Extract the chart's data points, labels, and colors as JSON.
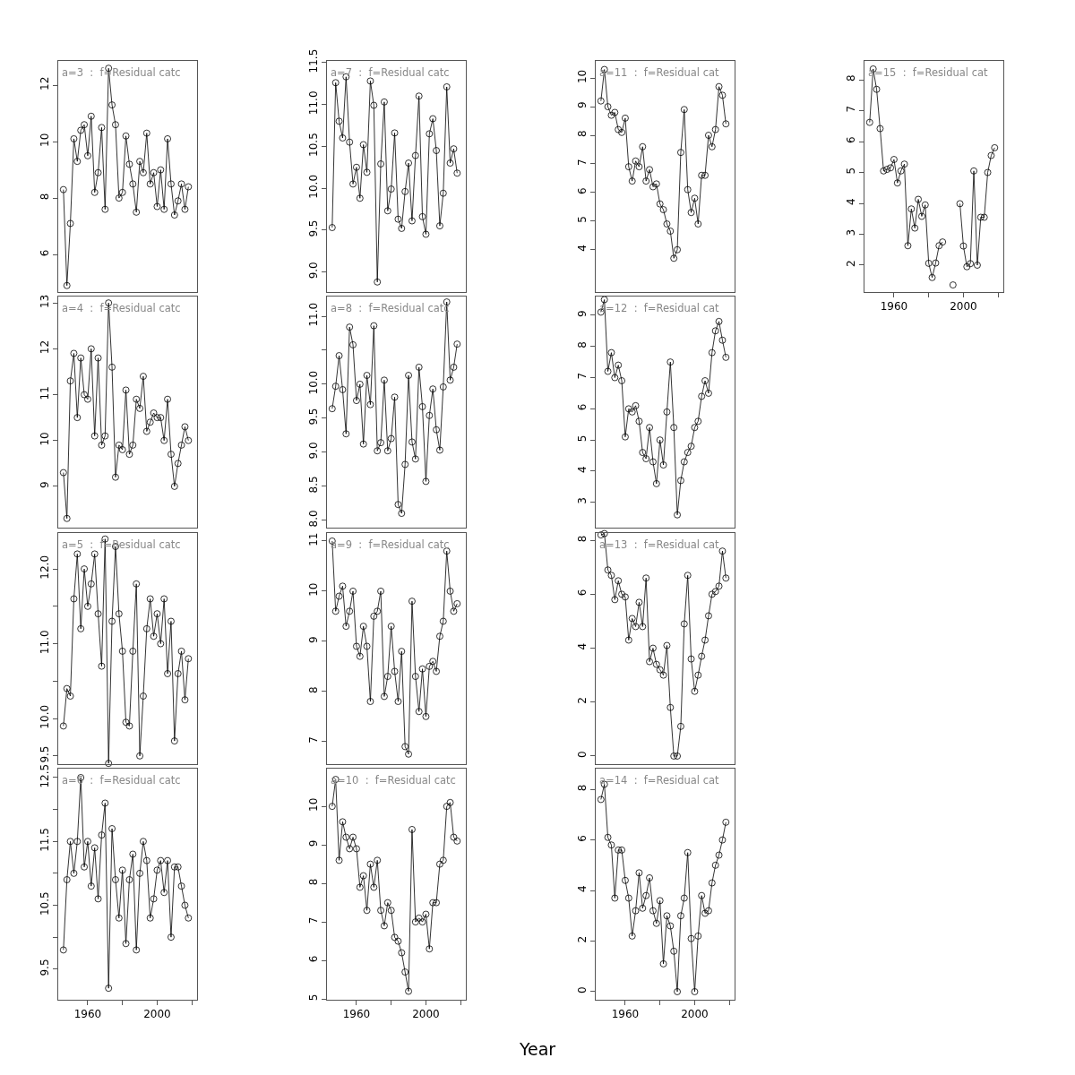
{
  "chart_data": [
    {
      "type": "line",
      "title": "a=3  :  f=Residual catc",
      "x": [
        1946,
        1948,
        1950,
        1952,
        1954,
        1956,
        1958,
        1960,
        1962,
        1964,
        1966,
        1968,
        1970,
        1972,
        1974,
        1976,
        1978,
        1980,
        1982,
        1984,
        1986,
        1988,
        1990,
        1992,
        1994,
        1996,
        1998,
        2000,
        2002,
        2004,
        2006,
        2008,
        2010,
        2012,
        2014,
        2016,
        2018
      ],
      "series": [
        {
          "color": "#000000",
          "values": [
            8.3,
            4.9,
            7.1,
            10.1,
            9.3,
            10.4,
            10.6,
            9.5,
            10.9,
            8.2,
            8.9,
            10.5,
            7.6,
            12.6,
            11.3,
            10.6,
            8.0,
            8.2,
            10.2,
            9.2,
            8.5,
            7.5,
            9.3,
            8.9,
            10.3,
            8.5,
            8.9,
            7.7,
            9.0,
            7.6,
            10.1,
            8.5,
            7.4,
            7.9,
            8.5,
            7.6,
            8.4
          ]
        }
      ],
      "marker": "circle",
      "xlim": [
        1943,
        2023
      ],
      "ylim": [
        4.67,
        12.86
      ],
      "yticks": [
        6,
        8,
        10,
        12
      ],
      "tick_labels": "y"
    },
    {
      "type": "line",
      "title": "a=7  :  f=Residual catc",
      "x": [
        1946,
        1948,
        1950,
        1952,
        1954,
        1956,
        1958,
        1960,
        1962,
        1964,
        1966,
        1968,
        1970,
        1972,
        1974,
        1976,
        1978,
        1980,
        1982,
        1984,
        1986,
        1988,
        1990,
        1992,
        1994,
        1996,
        1998,
        2000,
        2002,
        2004,
        2006,
        2008,
        2010,
        2012,
        2014,
        2016,
        2018
      ],
      "series": [
        {
          "color": "#000000",
          "values": [
            9.53,
            11.26,
            10.8,
            10.6,
            11.33,
            10.55,
            10.05,
            10.25,
            9.88,
            10.52,
            10.19,
            11.28,
            10.99,
            8.88,
            10.29,
            11.03,
            9.73,
            9.99,
            10.66,
            9.63,
            9.52,
            9.96,
            10.3,
            9.61,
            10.39,
            11.1,
            9.66,
            9.45,
            10.65,
            10.83,
            10.45,
            9.55,
            9.94,
            11.21,
            10.3,
            10.47,
            10.18
          ]
        }
      ],
      "marker": "circle",
      "xlim": [
        1943,
        2023
      ],
      "ylim": [
        8.76,
        11.52
      ],
      "yticks": [
        {
          "value": 9,
          "label": "9.0"
        },
        {
          "value": 9.5,
          "label": "9.5"
        },
        {
          "value": 10,
          "label": "10.0"
        },
        {
          "value": 10.5,
          "label": "10.5"
        },
        {
          "value": 11,
          "label": "11.0"
        },
        {
          "value": 11.5,
          "label": "11.5"
        }
      ],
      "tick_labels": "y"
    },
    {
      "type": "line",
      "title": "a=11  :  f=Residual cat",
      "x": [
        1946,
        1948,
        1950,
        1952,
        1954,
        1956,
        1958,
        1960,
        1962,
        1964,
        1966,
        1968,
        1970,
        1972,
        1974,
        1976,
        1978,
        1980,
        1982,
        1984,
        1986,
        1988,
        1990,
        1992,
        1994,
        1996,
        1998,
        2000,
        2002,
        2004,
        2006,
        2008,
        2010,
        2012,
        2014,
        2016,
        2018
      ],
      "series": [
        {
          "color": "#000000",
          "values": [
            9.2,
            10.3,
            9.0,
            8.7,
            8.8,
            8.2,
            8.1,
            8.6,
            6.9,
            6.4,
            7.1,
            6.9,
            7.6,
            6.4,
            6.8,
            6.2,
            6.3,
            5.6,
            5.4,
            4.9,
            4.65,
            3.7,
            4.0,
            7.4,
            8.9,
            6.1,
            5.3,
            5.8,
            4.9,
            6.6,
            6.6,
            8.0,
            7.6,
            8.2,
            9.7,
            9.4,
            8.4
          ]
        }
      ],
      "marker": "circle",
      "xlim": [
        1943,
        2023
      ],
      "ylim": [
        2.52,
        10.6
      ],
      "yticks": [
        4,
        5,
        6,
        7,
        8,
        9,
        10
      ],
      "tick_labels": "y"
    },
    {
      "type": "line",
      "title": "a=15  :  f=Residual cat",
      "x": [
        1946,
        1948,
        1950,
        1952,
        1954,
        1956,
        1958,
        1960,
        1962,
        1964,
        1966,
        1968,
        1970,
        1972,
        1974,
        1976,
        1978,
        1980,
        1982,
        1984,
        1986,
        1988,
        1990,
        1992,
        1994,
        1996,
        1998,
        2000,
        2002,
        2004,
        2006,
        2008,
        2010,
        2012,
        2014,
        2016,
        2018
      ],
      "series": [
        {
          "color": "#000000",
          "values": [
            6.62,
            8.35,
            7.69,
            6.42,
            5.05,
            5.1,
            5.15,
            5.42,
            4.66,
            5.05,
            5.27,
            2.63,
            3.82,
            3.2,
            4.13,
            3.58,
            3.95,
            2.06,
            1.6,
            2.07,
            2.63,
            2.75,
            null,
            null,
            1.36,
            null,
            3.99,
            2.62,
            1.95,
            2.05,
            5.05,
            2.0,
            3.55,
            3.55,
            5.0,
            5.55,
            5.8
          ]
        }
      ],
      "marker": "circle",
      "xlim": [
        1943,
        2023
      ],
      "xticks": [
        {
          "value": 1960,
          "label": "1960"
        },
        {
          "value": 1980,
          "label": null
        },
        {
          "value": 2000,
          "label": "2000"
        },
        {
          "value": 2020,
          "label": null
        }
      ],
      "ylim": [
        1.13,
        8.61
      ],
      "yticks": [
        2,
        3,
        4,
        5,
        6,
        7,
        8
      ]
    },
    {
      "type": "line",
      "title": "a=4  :  f=Residual catc",
      "x": [
        1946,
        1948,
        1950,
        1952,
        1954,
        1956,
        1958,
        1960,
        1962,
        1964,
        1966,
        1968,
        1970,
        1972,
        1974,
        1976,
        1978,
        1980,
        1982,
        1984,
        1986,
        1988,
        1990,
        1992,
        1994,
        1996,
        1998,
        2000,
        2002,
        2004,
        2006,
        2008,
        2010,
        2012,
        2014,
        2016,
        2018
      ],
      "series": [
        {
          "color": "#000000",
          "values": [
            9.3,
            8.3,
            11.3,
            11.9,
            10.5,
            11.8,
            11.0,
            10.9,
            12.0,
            10.1,
            11.8,
            9.9,
            10.1,
            13.0,
            11.6,
            9.2,
            9.9,
            9.8,
            11.1,
            9.7,
            9.9,
            10.9,
            10.7,
            11.4,
            10.2,
            10.4,
            10.6,
            10.5,
            10.5,
            10.0,
            10.9,
            9.7,
            9.0,
            9.5,
            9.9,
            10.3,
            10.0
          ]
        }
      ],
      "marker": "circle",
      "xlim": [
        1943,
        2023
      ],
      "ylim": [
        8.1,
        13.14
      ],
      "yticks": [
        9,
        10,
        11,
        12,
        13
      ],
      "tick_labels": "y"
    },
    {
      "type": "line",
      "title": "a=8  :  f=Residual catc",
      "x": [
        1946,
        1948,
        1950,
        1952,
        1954,
        1956,
        1958,
        1960,
        1962,
        1964,
        1966,
        1968,
        1970,
        1972,
        1974,
        1976,
        1978,
        1980,
        1982,
        1984,
        1986,
        1988,
        1990,
        1992,
        1994,
        1996,
        1998,
        2000,
        2002,
        2004,
        2006,
        2008,
        2010,
        2012,
        2014,
        2016,
        2018
      ],
      "series": [
        {
          "color": "#000000",
          "values": [
            9.64,
            9.97,
            10.42,
            9.92,
            9.27,
            10.84,
            10.58,
            9.76,
            10.0,
            9.12,
            10.13,
            9.7,
            10.86,
            9.02,
            9.14,
            10.06,
            9.02,
            9.2,
            9.81,
            8.23,
            8.1,
            8.82,
            10.13,
            9.15,
            8.9,
            10.25,
            9.67,
            8.57,
            9.54,
            9.93,
            9.33,
            9.03,
            9.96,
            11.21,
            10.06,
            10.25,
            10.59
          ]
        }
      ],
      "marker": "circle",
      "xlim": [
        1943,
        2023
      ],
      "ylim": [
        7.89,
        11.29
      ],
      "yticks": [
        {
          "value": 8,
          "label": "8.0"
        },
        {
          "value": 8.5,
          "label": "8.5"
        },
        {
          "value": 9,
          "label": "9.0"
        },
        {
          "value": 9.5,
          "label": "9.5"
        },
        {
          "value": 10,
          "label": "10.0"
        },
        {
          "value": 10.5,
          "label": null
        },
        {
          "value": 11,
          "label": "11.0"
        }
      ],
      "tick_labels": "y"
    },
    {
      "type": "line",
      "title": "a=12  :  f=Residual cat",
      "x": [
        1946,
        1948,
        1950,
        1952,
        1954,
        1956,
        1958,
        1960,
        1962,
        1964,
        1966,
        1968,
        1970,
        1972,
        1974,
        1976,
        1978,
        1980,
        1982,
        1984,
        1986,
        1988,
        1990,
        1992,
        1994,
        1996,
        1998,
        2000,
        2002,
        2004,
        2006,
        2008,
        2010,
        2012,
        2014,
        2016,
        2018
      ],
      "series": [
        {
          "color": "#000000",
          "values": [
            9.1,
            9.5,
            7.2,
            7.8,
            7.0,
            7.4,
            6.9,
            5.1,
            6.0,
            5.9,
            6.1,
            5.6,
            4.6,
            4.4,
            5.4,
            4.3,
            3.6,
            5.0,
            4.2,
            5.9,
            7.5,
            5.4,
            2.6,
            3.7,
            4.3,
            4.6,
            4.8,
            5.4,
            5.6,
            6.4,
            6.9,
            6.5,
            7.8,
            8.5,
            8.8,
            8.2,
            7.65
          ]
        }
      ],
      "marker": "circle",
      "xlim": [
        1943,
        2023
      ],
      "ylim": [
        2.19,
        9.6
      ],
      "yticks": [
        3,
        4,
        5,
        6,
        7,
        8,
        9
      ],
      "tick_labels": "y"
    },
    {
      "type": "line",
      "title": "a=5  :  f=Residual catc",
      "x": [
        1946,
        1948,
        1950,
        1952,
        1954,
        1956,
        1958,
        1960,
        1962,
        1964,
        1966,
        1968,
        1970,
        1972,
        1974,
        1976,
        1978,
        1980,
        1982,
        1984,
        1986,
        1988,
        1990,
        1992,
        1994,
        1996,
        1998,
        2000,
        2002,
        2004,
        2006,
        2008,
        2010,
        2012,
        2014,
        2016,
        2018
      ],
      "series": [
        {
          "color": "#000000",
          "values": [
            9.9,
            10.4,
            10.3,
            11.6,
            12.2,
            11.2,
            12.0,
            11.5,
            11.8,
            12.2,
            11.4,
            10.7,
            12.4,
            9.4,
            11.3,
            12.3,
            11.4,
            10.9,
            9.95,
            9.9,
            10.9,
            11.8,
            9.5,
            10.3,
            11.2,
            11.6,
            11.1,
            11.4,
            11.0,
            11.6,
            10.6,
            11.3,
            9.7,
            10.6,
            10.9,
            10.25,
            10.8
          ]
        }
      ],
      "marker": "circle",
      "xlim": [
        1943,
        2023
      ],
      "ylim": [
        9.39,
        12.48
      ],
      "yticks": [
        {
          "value": 9.5,
          "label": "9.5"
        },
        {
          "value": 10,
          "label": "10.0"
        },
        {
          "value": 10.5,
          "label": null
        },
        {
          "value": 11,
          "label": "11.0"
        },
        {
          "value": 11.5,
          "label": null
        },
        {
          "value": 12,
          "label": "12.0"
        }
      ],
      "tick_labels": "y"
    },
    {
      "type": "line",
      "title": "a=9  :  f=Residual catc",
      "x": [
        1946,
        1948,
        1950,
        1952,
        1954,
        1956,
        1958,
        1960,
        1962,
        1964,
        1966,
        1968,
        1970,
        1972,
        1974,
        1976,
        1978,
        1980,
        1982,
        1984,
        1986,
        1988,
        1990,
        1992,
        1994,
        1996,
        1998,
        2000,
        2002,
        2004,
        2006,
        2008,
        2010,
        2012,
        2014,
        2016,
        2018
      ],
      "series": [
        {
          "color": "#000000",
          "values": [
            11.0,
            9.6,
            9.9,
            10.1,
            9.3,
            9.6,
            10.0,
            8.9,
            8.7,
            9.3,
            8.9,
            7.8,
            9.5,
            9.6,
            10.0,
            7.9,
            8.3,
            9.3,
            8.4,
            7.8,
            8.8,
            6.9,
            6.75,
            9.8,
            8.3,
            7.6,
            8.45,
            7.5,
            8.5,
            8.6,
            8.4,
            9.1,
            9.4,
            10.8,
            10.0,
            9.6,
            9.75
          ]
        }
      ],
      "marker": "circle",
      "xlim": [
        1943,
        2023
      ],
      "ylim": [
        6.55,
        11.16
      ],
      "yticks": [
        7,
        8,
        9,
        10,
        11
      ],
      "tick_labels": "y"
    },
    {
      "type": "line",
      "title": "a=13  :  f=Residual cat",
      "x": [
        1946,
        1948,
        1950,
        1952,
        1954,
        1956,
        1958,
        1960,
        1962,
        1964,
        1966,
        1968,
        1970,
        1972,
        1974,
        1976,
        1978,
        1980,
        1982,
        1984,
        1986,
        1988,
        1990,
        1992,
        1994,
        1996,
        1998,
        2000,
        2002,
        2004,
        2006,
        2008,
        2010,
        2012,
        2014,
        2016,
        2018
      ],
      "series": [
        {
          "color": "#000000",
          "values": [
            8.2,
            8.25,
            6.9,
            6.7,
            5.8,
            6.5,
            6.0,
            5.9,
            4.3,
            5.1,
            4.8,
            5.7,
            4.8,
            6.6,
            3.5,
            4.0,
            3.4,
            3.2,
            3.0,
            4.1,
            1.8,
            0.0,
            0.0,
            1.1,
            4.9,
            6.7,
            3.6,
            2.4,
            3.0,
            3.7,
            4.3,
            5.2,
            6.0,
            6.1,
            6.3,
            7.6,
            6.6
          ]
        }
      ],
      "marker": "circle",
      "xlim": [
        1943,
        2023
      ],
      "ylim": [
        -0.3,
        8.27
      ],
      "yticks": [
        0,
        2,
        4,
        6,
        8
      ],
      "tick_labels": "y"
    },
    {
      "type": "line",
      "title": "a=6  :  f=Residual catc",
      "x": [
        1946,
        1948,
        1950,
        1952,
        1954,
        1956,
        1958,
        1960,
        1962,
        1964,
        1966,
        1968,
        1970,
        1972,
        1974,
        1976,
        1978,
        1980,
        1982,
        1984,
        1986,
        1988,
        1990,
        1992,
        1994,
        1996,
        1998,
        2000,
        2002,
        2004,
        2006,
        2008,
        2010,
        2012,
        2014,
        2016,
        2018
      ],
      "series": [
        {
          "color": "#000000",
          "values": [
            9.8,
            10.9,
            11.5,
            11.0,
            11.5,
            12.5,
            11.1,
            11.5,
            10.8,
            11.4,
            10.6,
            11.6,
            12.1,
            9.2,
            11.7,
            10.9,
            10.3,
            11.05,
            9.9,
            10.9,
            11.3,
            9.8,
            11.0,
            11.5,
            11.2,
            10.3,
            10.6,
            11.05,
            11.2,
            10.7,
            11.2,
            10.0,
            11.1,
            11.1,
            10.8,
            10.5,
            10.3
          ]
        }
      ],
      "marker": "circle",
      "xlim": [
        1943,
        2023
      ],
      "xticks": [
        {
          "value": 1960,
          "label": "1960"
        },
        {
          "value": 1980,
          "label": null
        },
        {
          "value": 2000,
          "label": "2000"
        },
        {
          "value": 2020,
          "label": null
        }
      ],
      "ylim": [
        9.02,
        12.64
      ],
      "yticks": [
        9.5,
        {
          "value": 10,
          "label": null
        },
        10.5,
        {
          "value": 11,
          "label": null
        },
        11.5,
        {
          "value": 12,
          "label": null
        },
        12.5
      ]
    },
    {
      "type": "line",
      "title": "a=10  :  f=Residual catc",
      "xlabel": "Year",
      "x": [
        1946,
        1948,
        1950,
        1952,
        1954,
        1956,
        1958,
        1960,
        1962,
        1964,
        1966,
        1968,
        1970,
        1972,
        1974,
        1976,
        1978,
        1980,
        1982,
        1984,
        1986,
        1988,
        1990,
        1992,
        1994,
        1996,
        1998,
        2000,
        2002,
        2004,
        2006,
        2008,
        2010,
        2012,
        2014,
        2016,
        2018
      ],
      "series": [
        {
          "color": "#000000",
          "values": [
            10.0,
            10.7,
            8.6,
            9.6,
            9.2,
            8.9,
            9.2,
            8.9,
            7.9,
            8.2,
            7.3,
            8.5,
            7.9,
            8.6,
            7.3,
            6.9,
            7.5,
            7.3,
            6.6,
            6.5,
            6.2,
            5.7,
            5.2,
            9.4,
            7.0,
            7.1,
            7.0,
            7.2,
            6.3,
            7.5,
            7.5,
            8.5,
            8.6,
            10.0,
            10.1,
            9.2,
            9.1
          ]
        }
      ],
      "marker": "circle",
      "xlim": [
        1943,
        2023
      ],
      "xticks": [
        {
          "value": 1960,
          "label": "1960"
        },
        {
          "value": 1980,
          "label": null
        },
        {
          "value": 2000,
          "label": "2000"
        },
        {
          "value": 2020,
          "label": null
        }
      ],
      "ylim": [
        4.98,
        10.98
      ],
      "yticks": [
        5,
        6,
        7,
        8,
        9,
        10
      ]
    },
    {
      "type": "line",
      "title": "a=14  :  f=Residual cat",
      "x": [
        1946,
        1948,
        1950,
        1952,
        1954,
        1956,
        1958,
        1960,
        1962,
        1964,
        1966,
        1968,
        1970,
        1972,
        1974,
        1976,
        1978,
        1980,
        1982,
        1984,
        1986,
        1988,
        1990,
        1992,
        1994,
        1996,
        1998,
        2000,
        2002,
        2004,
        2006,
        2008,
        2010,
        2012,
        2014,
        2016,
        2018
      ],
      "series": [
        {
          "color": "#000000",
          "values": [
            7.6,
            8.2,
            6.1,
            5.8,
            3.7,
            5.6,
            5.6,
            4.4,
            3.7,
            2.2,
            3.2,
            4.7,
            3.3,
            3.8,
            4.5,
            3.2,
            2.7,
            3.6,
            1.1,
            3.0,
            2.6,
            1.6,
            0.0,
            3.0,
            3.7,
            5.5,
            2.1,
            0.0,
            2.2,
            3.8,
            3.1,
            3.2,
            4.3,
            5.0,
            5.4,
            6.0,
            6.7
          ]
        }
      ],
      "marker": "circle",
      "xlim": [
        1943,
        2023
      ],
      "xticks": [
        {
          "value": 1960,
          "label": "1960"
        },
        {
          "value": 1980,
          "label": null
        },
        {
          "value": 2000,
          "label": "2000"
        },
        {
          "value": 2020,
          "label": null
        }
      ],
      "ylim": [
        -0.32,
        8.82
      ],
      "yticks": [
        0,
        2,
        4,
        6,
        8
      ]
    }
  ]
}
